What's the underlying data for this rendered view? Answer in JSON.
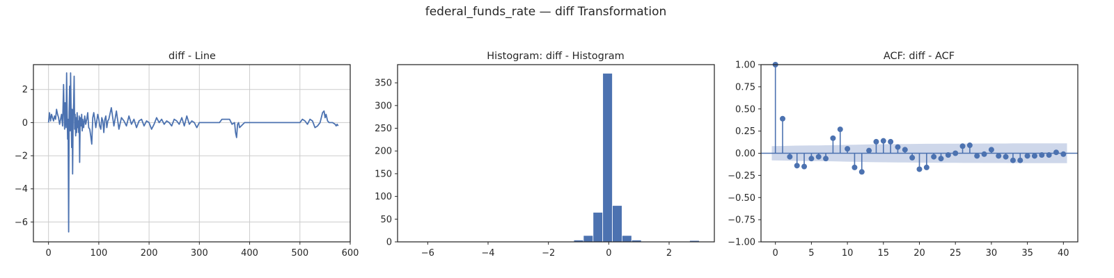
{
  "figure": {
    "suptitle": "federal_funds_rate — diff Transformation"
  },
  "colors": {
    "line": "#4c72b0",
    "grid": "#cccccc",
    "band": "#c5d0e6",
    "frame": "#262626"
  },
  "chart_data": [
    {
      "type": "line",
      "title": "diff - Line",
      "xlim": [
        -30,
        600
      ],
      "ylim": [
        -7.2,
        3.5
      ],
      "xticks": [
        0,
        100,
        200,
        300,
        400,
        500,
        600
      ],
      "yticks": [
        -6,
        -4,
        -2,
        0,
        2
      ],
      "grid": true,
      "series": [
        {
          "x": [
            0,
            2,
            4,
            6,
            8,
            10,
            12,
            14,
            16,
            18,
            20,
            22,
            24,
            26,
            28,
            30,
            31,
            32,
            33,
            34,
            35,
            36,
            37,
            38,
            39,
            40,
            41,
            42,
            43,
            44,
            45,
            46,
            47,
            48,
            49,
            50,
            51,
            52,
            53,
            54,
            55,
            56,
            57,
            58,
            59,
            60,
            61,
            62,
            63,
            64,
            65,
            66,
            67,
            68,
            70,
            72,
            74,
            76,
            78,
            80,
            82,
            84,
            86,
            88,
            90,
            92,
            94,
            96,
            98,
            100,
            102,
            104,
            106,
            108,
            110,
            112,
            114,
            116,
            118,
            120,
            125,
            130,
            135,
            140,
            145,
            150,
            155,
            160,
            165,
            170,
            175,
            180,
            185,
            190,
            195,
            200,
            205,
            210,
            215,
            220,
            225,
            230,
            235,
            240,
            245,
            250,
            255,
            260,
            265,
            270,
            275,
            280,
            285,
            290,
            295,
            300,
            310,
            320,
            330,
            340,
            345,
            350,
            355,
            360,
            365,
            370,
            372,
            374,
            376,
            378,
            380,
            390,
            400,
            410,
            420,
            430,
            440,
            450,
            460,
            470,
            480,
            490,
            500,
            505,
            510,
            515,
            520,
            525,
            530,
            535,
            540,
            545,
            548,
            550,
            552,
            555,
            558,
            560,
            565,
            570,
            572,
            574,
            576
          ],
          "y": [
            0,
            0.6,
            0.1,
            0.5,
            0.3,
            0.1,
            0.4,
            0.2,
            0.8,
            0.5,
            0.3,
            -0.1,
            0.2,
            0.5,
            -0.2,
            2.3,
            0.5,
            -0.4,
            1.2,
            0.3,
            -0.3,
            3.0,
            0.8,
            -1.0,
            0.2,
            -6.6,
            0.6,
            2.2,
            -0.5,
            3.0,
            0.5,
            -1.5,
            0.8,
            -3.1,
            0.4,
            1.2,
            2.8,
            -0.4,
            0.5,
            -0.8,
            0.3,
            -0.6,
            0.6,
            -0.3,
            0.1,
            -0.6,
            0.4,
            -2.4,
            0.3,
            0.2,
            -0.2,
            0.5,
            -0.5,
            0.2,
            -0.3,
            0.4,
            -0.1,
            0.2,
            0.6,
            -0.3,
            -0.4,
            -0.8,
            -1.3,
            0.3,
            0.6,
            0.2,
            -0.3,
            0.1,
            0.5,
            0.2,
            -0.2,
            -0.4,
            0.3,
            0.1,
            -0.6,
            0.2,
            0.4,
            -0.3,
            0.1,
            0.2,
            0.9,
            -0.2,
            0.7,
            -0.4,
            0.3,
            0.1,
            -0.2,
            0.4,
            -0.1,
            0.2,
            -0.3,
            0.1,
            0.2,
            -0.2,
            0.1,
            0.0,
            -0.4,
            -0.1,
            0.3,
            0.0,
            0.2,
            -0.1,
            0.1,
            0.0,
            -0.2,
            0.2,
            0.1,
            -0.1,
            0.3,
            -0.2,
            0.4,
            -0.1,
            0.1,
            0.0,
            -0.3,
            0.0,
            0.0,
            0.0,
            0.0,
            0.0,
            0.2,
            0.2,
            0.2,
            0.2,
            -0.1,
            0.0,
            -0.6,
            -0.9,
            -0.1,
            0.0,
            -0.3,
            0.0,
            0.0,
            0.0,
            0.0,
            0.0,
            0.0,
            0.0,
            0.0,
            0.0,
            0.0,
            0.0,
            0.0,
            0.2,
            0.1,
            -0.1,
            0.2,
            0.1,
            -0.3,
            -0.2,
            0.0,
            0.6,
            0.7,
            0.3,
            0.5,
            0.1,
            0.0,
            0.0,
            0.0,
            -0.1,
            -0.2,
            -0.1,
            -0.2
          ]
        }
      ]
    },
    {
      "type": "bar",
      "title": "Histogram: diff - Histogram",
      "xlim": [
        -7.0,
        3.5
      ],
      "ylim": [
        0,
        390
      ],
      "xticks": [
        -6,
        -4,
        -2,
        0,
        2
      ],
      "yticks": [
        0,
        50,
        100,
        150,
        200,
        250,
        300,
        350
      ],
      "grid": false,
      "bins": [
        {
          "x0": -6.6,
          "x1": -6.28,
          "count": 1
        },
        {
          "x0": -3.08,
          "x1": -2.76,
          "count": 1
        },
        {
          "x0": -2.44,
          "x1": -2.12,
          "count": 1
        },
        {
          "x0": -1.48,
          "x1": -1.16,
          "count": 1
        },
        {
          "x0": -1.16,
          "x1": -0.84,
          "count": 4
        },
        {
          "x0": -0.84,
          "x1": -0.52,
          "count": 14
        },
        {
          "x0": -0.52,
          "x1": -0.2,
          "count": 65
        },
        {
          "x0": -0.2,
          "x1": 0.12,
          "count": 371
        },
        {
          "x0": 0.12,
          "x1": 0.44,
          "count": 80
        },
        {
          "x0": 0.44,
          "x1": 0.76,
          "count": 14
        },
        {
          "x0": 0.76,
          "x1": 1.08,
          "count": 4
        },
        {
          "x0": 1.08,
          "x1": 1.4,
          "count": 1
        },
        {
          "x0": 2.68,
          "x1": 3.0,
          "count": 3
        }
      ]
    },
    {
      "type": "scatter",
      "title": "ACF: diff - ACF",
      "xlim": [
        -2,
        42
      ],
      "ylim": [
        -1.0,
        1.0
      ],
      "xticks": [
        0,
        5,
        10,
        15,
        20,
        25,
        30,
        35,
        40
      ],
      "yticks": [
        -1.0,
        -0.75,
        -0.5,
        -0.25,
        0.0,
        0.25,
        0.5,
        0.75,
        1.0
      ],
      "ytick_labels": [
        "−1.00",
        "−0.75",
        "−0.50",
        "−0.25",
        "0.00",
        "0.25",
        "0.50",
        "0.75",
        "1.00"
      ],
      "grid": false,
      "lags": [
        0,
        1,
        2,
        3,
        4,
        5,
        6,
        7,
        8,
        9,
        10,
        11,
        12,
        13,
        14,
        15,
        16,
        17,
        18,
        19,
        20,
        21,
        22,
        23,
        24,
        25,
        26,
        27,
        28,
        29,
        30,
        31,
        32,
        33,
        34,
        35,
        36,
        37,
        38,
        39,
        40
      ],
      "values": [
        1.0,
        0.39,
        -0.04,
        -0.14,
        -0.15,
        -0.06,
        -0.04,
        -0.06,
        0.17,
        0.27,
        0.05,
        -0.16,
        -0.21,
        0.03,
        0.13,
        0.14,
        0.13,
        0.07,
        0.04,
        -0.05,
        -0.18,
        -0.16,
        -0.04,
        -0.06,
        -0.02,
        0.0,
        0.08,
        0.09,
        -0.03,
        -0.01,
        0.04,
        -0.03,
        -0.04,
        -0.08,
        -0.08,
        -0.03,
        -0.03,
        -0.02,
        -0.02,
        0.01,
        -0.01
      ],
      "confidence_band": [
        0.0,
        0.082,
        0.085,
        0.086,
        0.087,
        0.088,
        0.089,
        0.09,
        0.091,
        0.093,
        0.095,
        0.096,
        0.098,
        0.1,
        0.101,
        0.102,
        0.103,
        0.104,
        0.104,
        0.105,
        0.106,
        0.107,
        0.107,
        0.108,
        0.108,
        0.108,
        0.109,
        0.109,
        0.109,
        0.11,
        0.11,
        0.11,
        0.11,
        0.111,
        0.111,
        0.111,
        0.111,
        0.111,
        0.112,
        0.112,
        0.112
      ]
    }
  ]
}
